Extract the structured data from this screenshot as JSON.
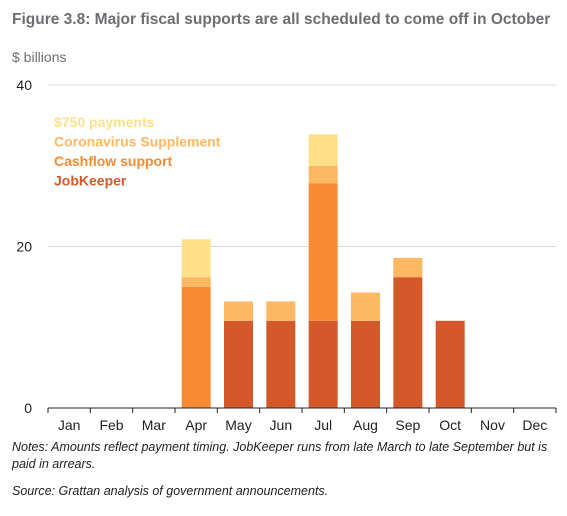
{
  "chart_data": {
    "type": "bar",
    "stacked": true,
    "title": "Figure 3.8: Major fiscal supports are all scheduled to come off in October",
    "subtitle": "$ billions",
    "categories": [
      "Jan",
      "Feb",
      "Mar",
      "Apr",
      "May",
      "Jun",
      "Jul",
      "Aug",
      "Sep",
      "Oct",
      "Nov",
      "Dec"
    ],
    "ylim": [
      0,
      40
    ],
    "yticks": [
      0,
      20,
      40
    ],
    "grid": true,
    "legend_position": "top-left",
    "series": [
      {
        "name": "JobKeeper",
        "color": "#d4582a",
        "values": [
          0,
          0,
          0,
          0,
          10.8,
          10.8,
          10.8,
          10.8,
          16.2,
          10.8,
          0,
          0
        ]
      },
      {
        "name": "Cashflow support",
        "color": "#f68b33",
        "values": [
          0,
          0,
          0,
          15,
          0,
          0,
          17,
          0,
          0,
          0,
          0,
          0
        ]
      },
      {
        "name": "Coronavirus Supplement",
        "color": "#fdb863",
        "values": [
          0,
          0,
          0,
          1.2,
          2.4,
          2.4,
          2.2,
          3.5,
          2.4,
          0,
          0,
          0
        ]
      },
      {
        "name": "$750 payments",
        "color": "#ffe08a",
        "values": [
          0,
          0,
          0,
          4.7,
          0,
          0,
          3.9,
          0,
          0,
          0,
          0,
          0
        ]
      }
    ],
    "notes": "Notes: Amounts reflect payment timing. JobKeeper runs from late March to late September but is paid in arrears.",
    "source": "Source: Grattan analysis of government announcements."
  }
}
